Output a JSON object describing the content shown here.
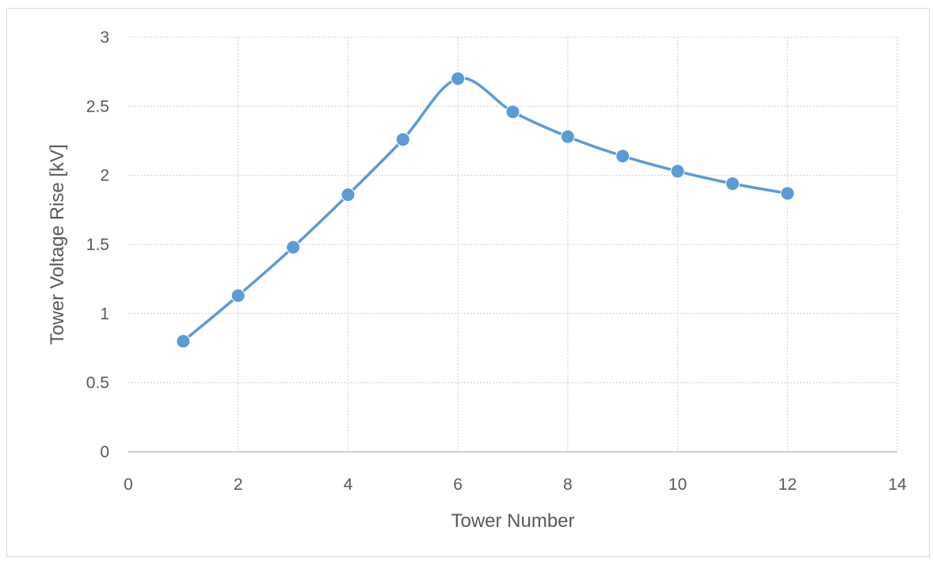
{
  "chart_data": {
    "type": "line",
    "title": "",
    "xlabel": "Tower Number",
    "ylabel": "Tower Voltage Rise [kV]",
    "xlim": [
      0,
      14
    ],
    "ylim": [
      0,
      3
    ],
    "xticks": [
      "0",
      "2",
      "4",
      "6",
      "8",
      "10",
      "12",
      "14"
    ],
    "yticks": [
      "0",
      "0.5",
      "1",
      "1.5",
      "2",
      "2.5",
      "3"
    ],
    "grid": true,
    "legend": "none",
    "series": [
      {
        "x": [
          1,
          2,
          3,
          4,
          5,
          6,
          7,
          8,
          9,
          10,
          11,
          12
        ],
        "y": [
          0.8,
          1.13,
          1.48,
          1.86,
          2.26,
          2.7,
          2.46,
          2.28,
          2.14,
          2.03,
          1.94,
          1.87
        ],
        "color": "#5b9bd5"
      }
    ]
  }
}
